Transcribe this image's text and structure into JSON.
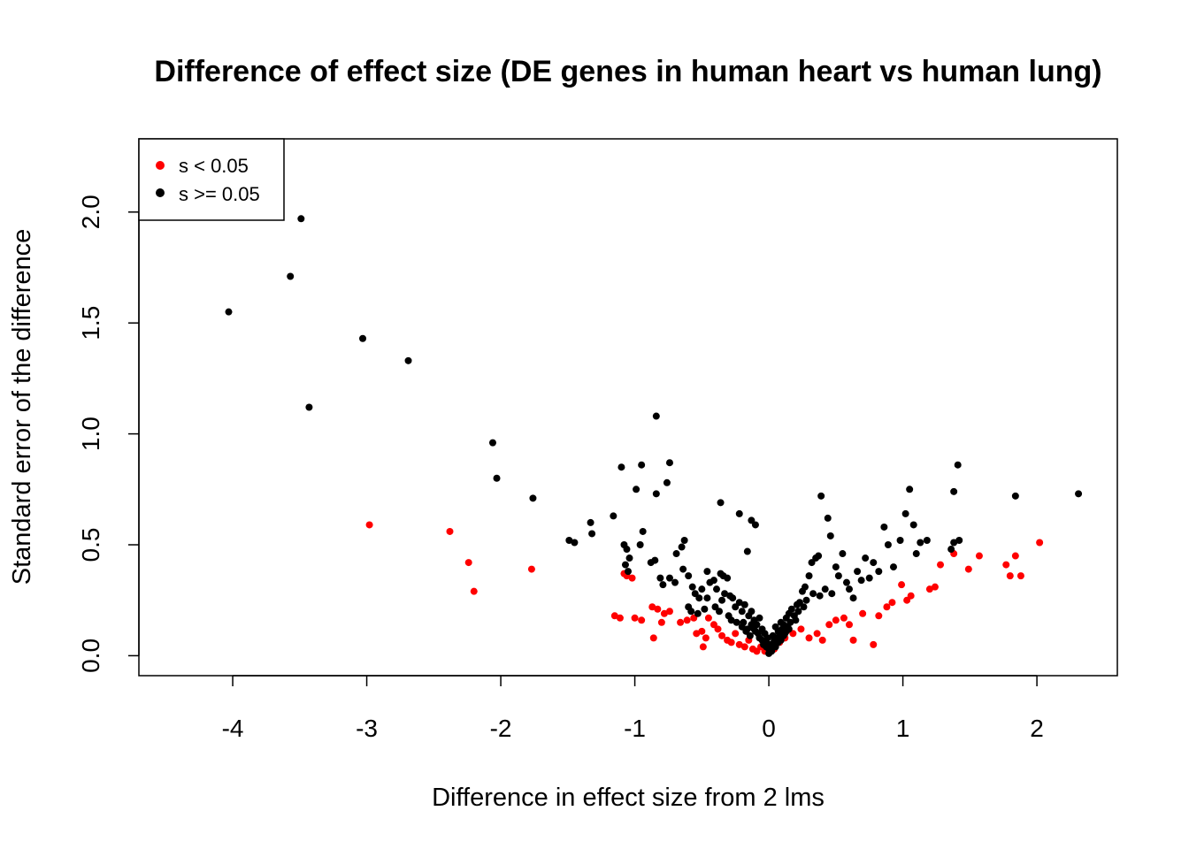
{
  "chart_data": {
    "type": "scatter",
    "title": "Difference of effect size (DE genes in human heart vs human lung)",
    "xlabel": "Difference in effect size from 2 lms",
    "ylabel": "Standard error of the difference",
    "xlim": [
      -4.7,
      2.6
    ],
    "ylim": [
      -0.09,
      2.33
    ],
    "x_ticks": [
      -4,
      -3,
      -2,
      -1,
      0,
      1,
      2
    ],
    "x_tick_labels": [
      "-4",
      "-3",
      "-2",
      "-1",
      "0",
      "1",
      "2"
    ],
    "y_ticks": [
      0.0,
      0.5,
      1.0,
      1.5,
      2.0
    ],
    "y_tick_labels": [
      "0.0",
      "0.5",
      "1.0",
      "1.5",
      "2.0"
    ],
    "grid": false,
    "legend": {
      "position": "top-left",
      "entries": [
        {
          "label": "s < 0.05",
          "color": "#ff0000"
        },
        {
          "label": "s >= 0.05",
          "color": "#000000"
        }
      ]
    },
    "series": [
      {
        "name": "s < 0.05",
        "color": "#ff0000",
        "points": [
          [
            -2.98,
            0.59
          ],
          [
            -2.38,
            0.56
          ],
          [
            -2.24,
            0.42
          ],
          [
            -2.2,
            0.29
          ],
          [
            -1.77,
            0.39
          ],
          [
            -1.08,
            0.37
          ],
          [
            -1.06,
            0.36
          ],
          [
            -1.02,
            0.35
          ],
          [
            -1.15,
            0.18
          ],
          [
            -1.11,
            0.17
          ],
          [
            -1.0,
            0.17
          ],
          [
            -0.95,
            0.16
          ],
          [
            -0.87,
            0.22
          ],
          [
            -0.83,
            0.21
          ],
          [
            -0.78,
            0.19
          ],
          [
            -0.74,
            0.2
          ],
          [
            -0.8,
            0.15
          ],
          [
            -0.86,
            0.08
          ],
          [
            -0.66,
            0.15
          ],
          [
            -0.61,
            0.16
          ],
          [
            -0.56,
            0.17
          ],
          [
            -0.54,
            0.1
          ],
          [
            -0.5,
            0.11
          ],
          [
            -0.47,
            0.08
          ],
          [
            -0.49,
            0.04
          ],
          [
            -0.45,
            0.17
          ],
          [
            -0.41,
            0.14
          ],
          [
            -0.38,
            0.12
          ],
          [
            -0.35,
            0.09
          ],
          [
            -0.31,
            0.07
          ],
          [
            -0.28,
            0.06
          ],
          [
            -0.25,
            0.1
          ],
          [
            -0.22,
            0.05
          ],
          [
            -0.18,
            0.04
          ],
          [
            -0.15,
            0.07
          ],
          [
            -0.12,
            0.03
          ],
          [
            -0.09,
            0.02
          ],
          [
            -0.06,
            0.04
          ],
          [
            -0.03,
            0.02
          ],
          [
            0.04,
            0.03
          ],
          [
            0.08,
            0.06
          ],
          [
            0.12,
            0.08
          ],
          [
            0.18,
            0.1
          ],
          [
            0.24,
            0.12
          ],
          [
            0.3,
            0.08
          ],
          [
            0.36,
            0.1
          ],
          [
            0.4,
            0.07
          ],
          [
            0.45,
            0.14
          ],
          [
            0.5,
            0.16
          ],
          [
            0.56,
            0.17
          ],
          [
            0.6,
            0.14
          ],
          [
            0.63,
            0.07
          ],
          [
            0.7,
            0.19
          ],
          [
            0.78,
            0.05
          ],
          [
            0.82,
            0.18
          ],
          [
            0.88,
            0.22
          ],
          [
            0.92,
            0.24
          ],
          [
            0.99,
            0.32
          ],
          [
            1.03,
            0.25
          ],
          [
            1.06,
            0.27
          ],
          [
            1.2,
            0.3
          ],
          [
            1.24,
            0.31
          ],
          [
            1.28,
            0.41
          ],
          [
            1.38,
            0.46
          ],
          [
            1.49,
            0.39
          ],
          [
            1.57,
            0.45
          ],
          [
            1.77,
            0.41
          ],
          [
            1.8,
            0.36
          ],
          [
            1.84,
            0.45
          ],
          [
            1.88,
            0.36
          ],
          [
            2.02,
            0.51
          ]
        ]
      },
      {
        "name": "s >= 0.05",
        "color": "#000000",
        "points": [
          [
            -4.03,
            1.55
          ],
          [
            -3.57,
            1.71
          ],
          [
            -3.49,
            1.97
          ],
          [
            -3.43,
            1.12
          ],
          [
            -3.03,
            1.43
          ],
          [
            -2.69,
            1.33
          ],
          [
            -2.06,
            0.96
          ],
          [
            -2.03,
            0.8
          ],
          [
            -1.76,
            0.71
          ],
          [
            -1.49,
            0.52
          ],
          [
            -1.45,
            0.51
          ],
          [
            -1.33,
            0.6
          ],
          [
            -1.32,
            0.55
          ],
          [
            -1.16,
            0.63
          ],
          [
            -1.1,
            0.85
          ],
          [
            -1.08,
            0.5
          ],
          [
            -1.06,
            0.48
          ],
          [
            -1.04,
            0.44
          ],
          [
            -1.07,
            0.41
          ],
          [
            -1.05,
            0.38
          ],
          [
            -0.99,
            0.75
          ],
          [
            -0.95,
            0.86
          ],
          [
            -0.94,
            0.56
          ],
          [
            -0.96,
            0.5
          ],
          [
            -0.88,
            0.42
          ],
          [
            -0.85,
            0.43
          ],
          [
            -0.84,
            1.08
          ],
          [
            -0.84,
            0.73
          ],
          [
            -0.76,
            0.78
          ],
          [
            -0.74,
            0.87
          ],
          [
            -0.81,
            0.35
          ],
          [
            -0.79,
            0.32
          ],
          [
            -0.74,
            0.35
          ],
          [
            -0.7,
            0.33
          ],
          [
            -0.69,
            0.46
          ],
          [
            -0.65,
            0.49
          ],
          [
            -0.63,
            0.52
          ],
          [
            -0.64,
            0.39
          ],
          [
            -0.6,
            0.36
          ],
          [
            -0.57,
            0.31
          ],
          [
            -0.55,
            0.28
          ],
          [
            -0.52,
            0.26
          ],
          [
            -0.5,
            0.3
          ],
          [
            -0.46,
            0.38
          ],
          [
            -0.44,
            0.33
          ],
          [
            -0.41,
            0.34
          ],
          [
            -0.39,
            0.3
          ],
          [
            -0.36,
            0.37
          ],
          [
            -0.34,
            0.36
          ],
          [
            -0.33,
            0.28
          ],
          [
            -0.31,
            0.35
          ],
          [
            -0.29,
            0.27
          ],
          [
            -0.27,
            0.26
          ],
          [
            -0.36,
            0.69
          ],
          [
            -0.22,
            0.64
          ],
          [
            -0.16,
            0.47
          ],
          [
            -0.13,
            0.61
          ],
          [
            -0.1,
            0.59
          ],
          [
            -0.25,
            0.22
          ],
          [
            -0.22,
            0.24
          ],
          [
            -0.2,
            0.2
          ],
          [
            -0.18,
            0.23
          ],
          [
            -0.15,
            0.18
          ],
          [
            -0.13,
            0.2
          ],
          [
            -0.11,
            0.16
          ],
          [
            -0.09,
            0.14
          ],
          [
            -0.07,
            0.17
          ],
          [
            -0.05,
            0.12
          ],
          [
            -0.03,
            0.1
          ],
          [
            -0.01,
            0.08
          ],
          [
            0.01,
            0.05
          ],
          [
            0.03,
            0.09
          ],
          [
            0.05,
            0.13
          ],
          [
            0.07,
            0.11
          ],
          [
            0.09,
            0.15
          ],
          [
            0.11,
            0.14
          ],
          [
            0.13,
            0.17
          ],
          [
            0.15,
            0.19
          ],
          [
            0.17,
            0.21
          ],
          [
            0.19,
            0.18
          ],
          [
            0.21,
            0.23
          ],
          [
            0.23,
            0.24
          ],
          [
            0.25,
            0.29
          ],
          [
            0.27,
            0.31
          ],
          [
            0.3,
            0.36
          ],
          [
            0.32,
            0.42
          ],
          [
            0.35,
            0.44
          ],
          [
            0.37,
            0.45
          ],
          [
            0.39,
            0.72
          ],
          [
            0.44,
            0.62
          ],
          [
            0.46,
            0.54
          ],
          [
            0.5,
            0.4
          ],
          [
            0.52,
            0.36
          ],
          [
            0.55,
            0.46
          ],
          [
            0.58,
            0.33
          ],
          [
            0.6,
            0.3
          ],
          [
            0.63,
            0.26
          ],
          [
            0.66,
            0.38
          ],
          [
            0.69,
            0.34
          ],
          [
            0.72,
            0.44
          ],
          [
            0.75,
            0.35
          ],
          [
            0.78,
            0.42
          ],
          [
            0.82,
            0.38
          ],
          [
            0.86,
            0.58
          ],
          [
            0.89,
            0.5
          ],
          [
            0.93,
            0.4
          ],
          [
            0.98,
            0.52
          ],
          [
            1.02,
            0.64
          ],
          [
            1.05,
            0.75
          ],
          [
            1.08,
            0.59
          ],
          [
            1.1,
            0.46
          ],
          [
            1.13,
            0.51
          ],
          [
            1.18,
            0.52
          ],
          [
            1.36,
            0.48
          ],
          [
            1.38,
            0.51
          ],
          [
            1.38,
            0.74
          ],
          [
            1.42,
            0.52
          ],
          [
            1.41,
            0.86
          ],
          [
            1.84,
            0.72
          ],
          [
            2.31,
            0.73
          ],
          [
            -0.6,
            0.22
          ],
          [
            -0.58,
            0.2
          ],
          [
            -0.53,
            0.19
          ],
          [
            -0.48,
            0.21
          ],
          [
            -0.46,
            0.26
          ],
          [
            -0.4,
            0.22
          ],
          [
            -0.37,
            0.2
          ],
          [
            -0.35,
            0.25
          ],
          [
            -0.3,
            0.18
          ],
          [
            -0.28,
            0.16
          ],
          [
            -0.24,
            0.15
          ],
          [
            -0.2,
            0.13
          ],
          [
            -0.17,
            0.11
          ],
          [
            -0.14,
            0.09
          ],
          [
            -0.11,
            0.12
          ],
          [
            -0.08,
            0.1
          ],
          [
            -0.05,
            0.07
          ],
          [
            -0.02,
            0.06
          ],
          [
            0.0,
            0.03
          ],
          [
            0.02,
            0.02
          ],
          [
            0.04,
            0.07
          ],
          [
            0.06,
            0.08
          ],
          [
            0.08,
            0.1
          ],
          [
            0.1,
            0.12
          ],
          [
            0.12,
            0.1
          ],
          [
            0.14,
            0.13
          ],
          [
            0.16,
            0.15
          ],
          [
            0.2,
            0.16
          ],
          [
            0.22,
            0.2
          ],
          [
            0.26,
            0.22
          ],
          [
            0.28,
            0.25
          ],
          [
            0.33,
            0.28
          ],
          [
            0.38,
            0.27
          ],
          [
            0.42,
            0.3
          ],
          [
            0.47,
            0.28
          ],
          [
            -0.19,
            0.15
          ],
          [
            -0.16,
            0.12
          ],
          [
            -0.13,
            0.14
          ],
          [
            -0.1,
            0.11
          ],
          [
            -0.07,
            0.08
          ],
          [
            -0.04,
            0.05
          ],
          [
            -0.02,
            0.04
          ],
          [
            0.0,
            0.01
          ],
          [
            0.02,
            0.05
          ],
          [
            0.05,
            0.04
          ],
          [
            0.07,
            0.06
          ],
          [
            0.09,
            0.07
          ],
          [
            0.11,
            0.09
          ],
          [
            0.13,
            0.11
          ],
          [
            0.15,
            0.12
          ]
        ]
      }
    ]
  }
}
